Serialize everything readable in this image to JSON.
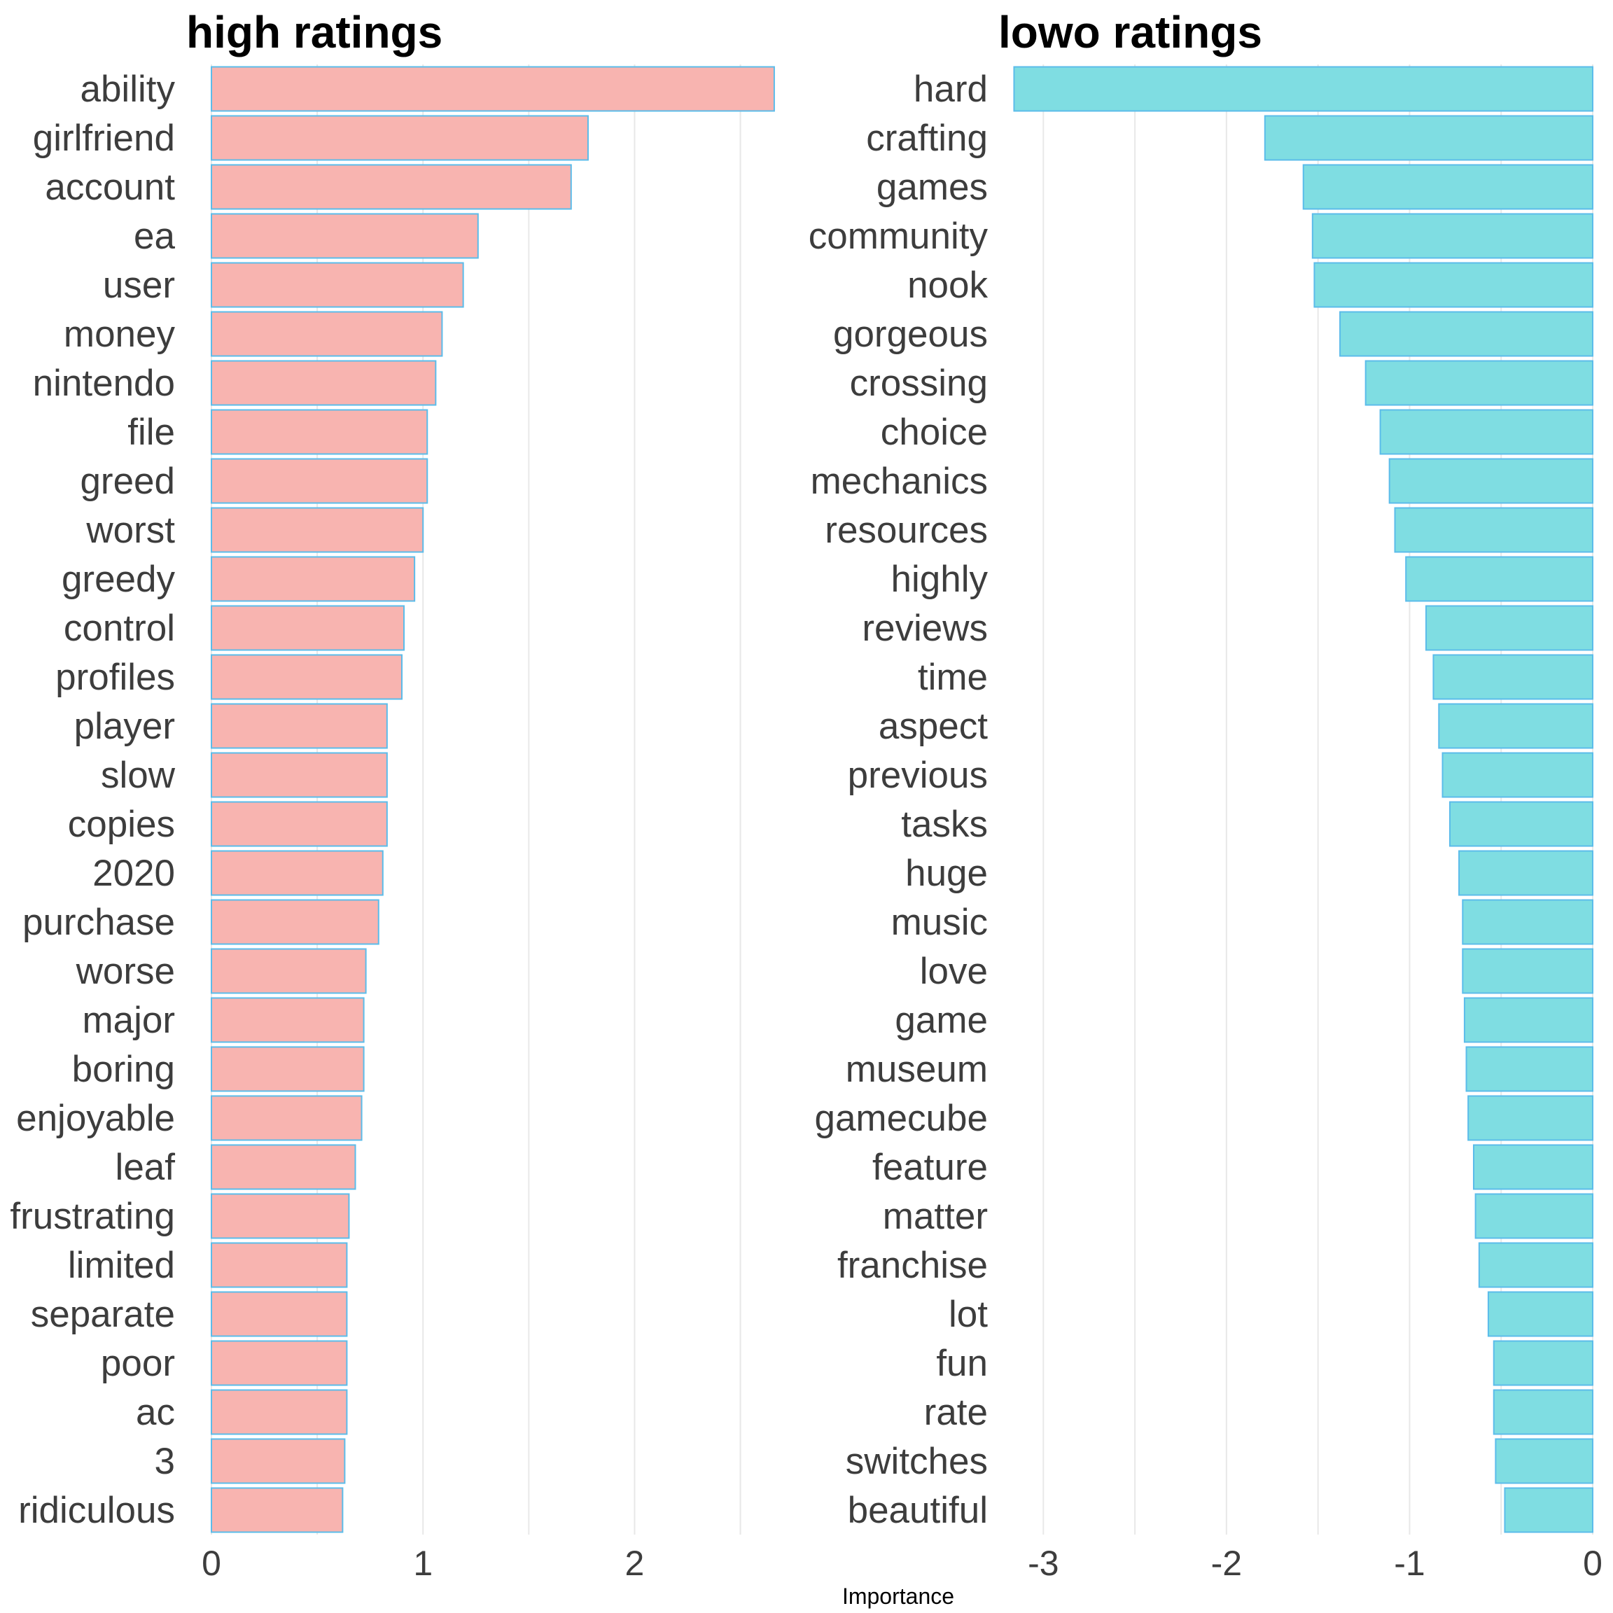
{
  "chart_data": {
    "type": "bar",
    "orientation": "horizontal",
    "xlabel": "Importance",
    "grid": true,
    "panels": [
      {
        "title": "high ratings",
        "color": "#f8b4b0",
        "edge_color": "#5bbcea",
        "xlim": [
          0,
          2.7
        ],
        "xticks": [
          0,
          1,
          2
        ],
        "categories": [
          "ability",
          "girlfriend",
          "account",
          "ea",
          "user",
          "money",
          "nintendo",
          "file",
          "greed",
          "worst",
          "greedy",
          "control",
          "profiles",
          "player",
          "slow",
          "copies",
          "2020",
          "purchase",
          "worse",
          "major",
          "boring",
          "enjoyable",
          "leaf",
          "frustrating",
          "limited",
          "separate",
          "poor",
          "ac",
          "3",
          "ridiculous"
        ],
        "values": [
          2.66,
          1.78,
          1.7,
          1.26,
          1.19,
          1.09,
          1.06,
          1.02,
          1.02,
          1.0,
          0.96,
          0.91,
          0.9,
          0.83,
          0.83,
          0.83,
          0.81,
          0.79,
          0.73,
          0.72,
          0.72,
          0.71,
          0.68,
          0.65,
          0.64,
          0.64,
          0.64,
          0.64,
          0.63,
          0.62
        ]
      },
      {
        "title": "lowo ratings",
        "color": "#7fdde2",
        "edge_color": "#5bbcea",
        "xlim": [
          -3.2,
          0
        ],
        "xticks": [
          -3,
          -2,
          -1,
          0
        ],
        "categories": [
          "hard",
          "crafting",
          "games",
          "community",
          "nook",
          "gorgeous",
          "crossing",
          "choice",
          "mechanics",
          "resources",
          "highly",
          "reviews",
          "time",
          "aspect",
          "previous",
          "tasks",
          "huge",
          "music",
          "love",
          "game",
          "museum",
          "gamecube",
          "feature",
          "matter",
          "franchise",
          "lot",
          "fun",
          "rate",
          "switches",
          "beautiful"
        ],
        "values": [
          -3.16,
          -1.79,
          -1.58,
          -1.53,
          -1.52,
          -1.38,
          -1.24,
          -1.16,
          -1.11,
          -1.08,
          -1.02,
          -0.91,
          -0.87,
          -0.84,
          -0.82,
          -0.78,
          -0.73,
          -0.71,
          -0.71,
          -0.7,
          -0.69,
          -0.68,
          -0.65,
          -0.64,
          -0.62,
          -0.57,
          -0.54,
          -0.54,
          -0.53,
          -0.48
        ]
      }
    ]
  }
}
